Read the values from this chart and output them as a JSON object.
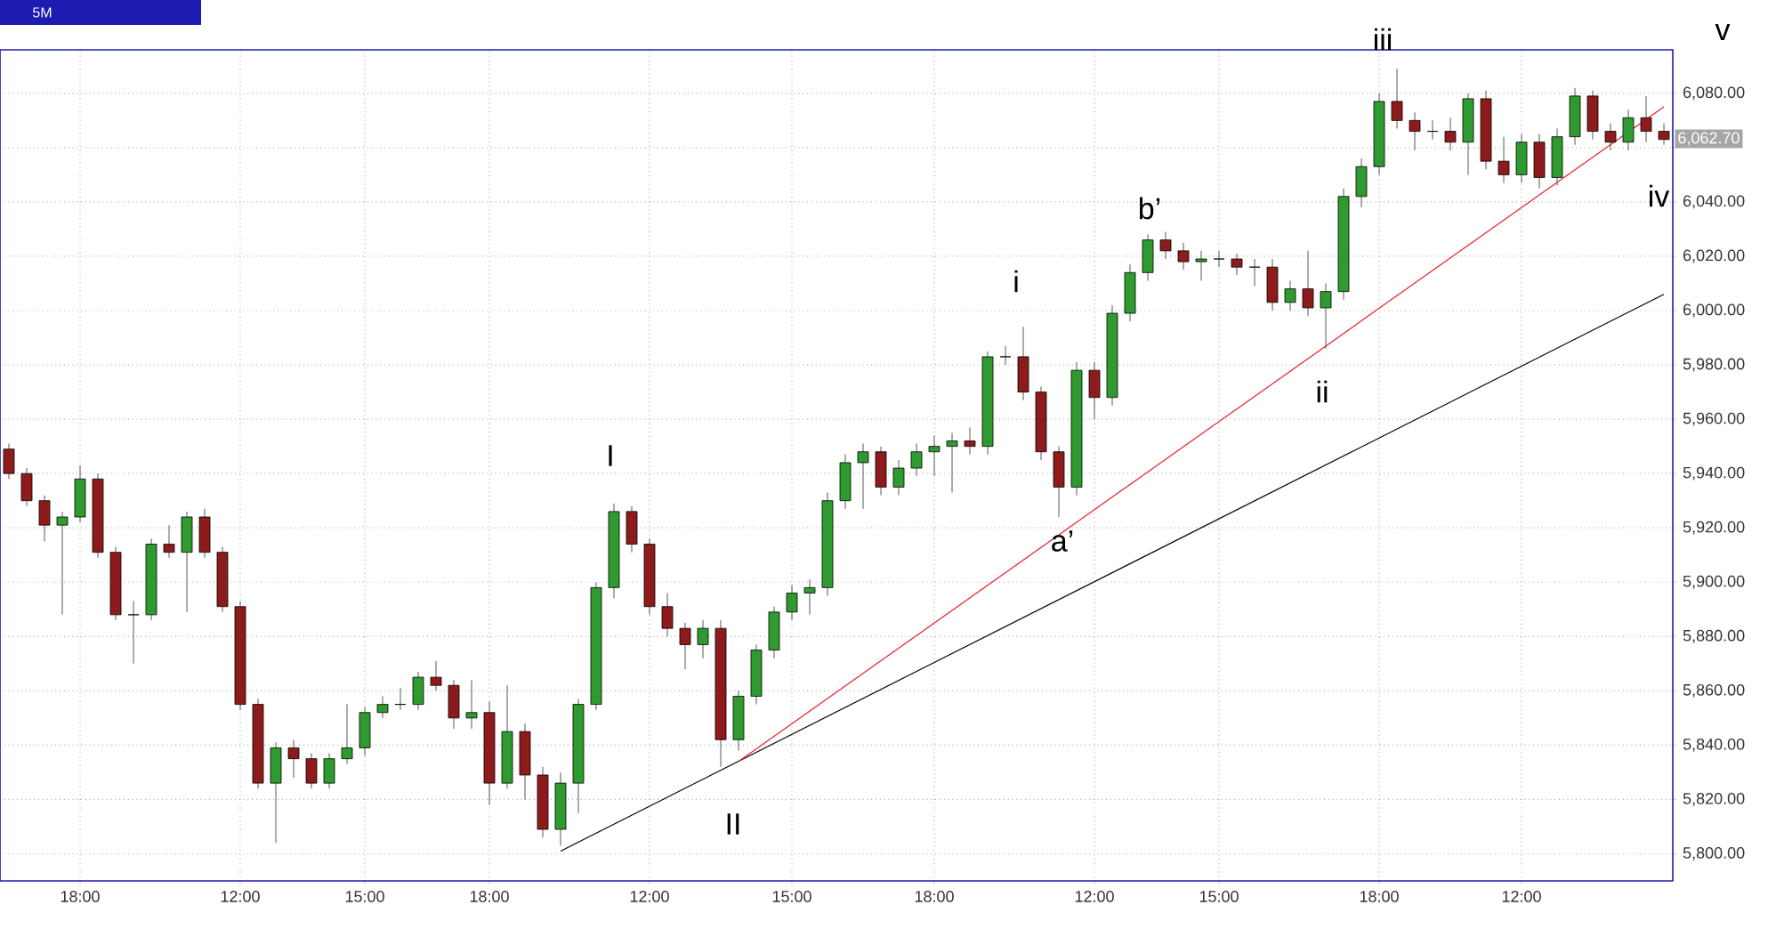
{
  "chart_data": {
    "type": "candlestick",
    "title": "5M",
    "categories": [
      null,
      null,
      null,
      null,
      "18:00",
      null,
      null,
      null,
      null,
      null,
      null,
      null,
      null,
      "12:00",
      null,
      null,
      null,
      null,
      null,
      null,
      "15:00",
      null,
      null,
      null,
      null,
      null,
      null,
      "18:00",
      null,
      null,
      null,
      null,
      null,
      null,
      null,
      null,
      "12:00",
      null,
      null,
      null,
      null,
      null,
      null,
      null,
      "15:00",
      null,
      null,
      null,
      null,
      null,
      null,
      null,
      "18:00",
      null,
      null,
      null,
      null,
      null,
      null,
      null,
      null,
      "12:00",
      null,
      null,
      null,
      null,
      null,
      null,
      "15:00",
      null,
      null,
      null,
      null,
      null,
      null,
      null,
      null,
      "18:00",
      null,
      null,
      null,
      null,
      null,
      null,
      null,
      "12:00",
      null,
      null,
      null,
      null,
      null,
      null,
      null,
      null
    ],
    "ohlc": [
      [
        5949,
        5951,
        5938,
        5940
      ],
      [
        5940,
        5942,
        5928,
        5930
      ],
      [
        5930,
        5932,
        5915,
        5921
      ],
      [
        5921,
        5926,
        5888,
        5924
      ],
      [
        5924,
        5943,
        5922,
        5938
      ],
      [
        5938,
        5940,
        5909,
        5911
      ],
      [
        5911,
        5913,
        5886,
        5888
      ],
      [
        5888,
        5893,
        5870,
        5888
      ],
      [
        5888,
        5916,
        5886,
        5914
      ],
      [
        5914,
        5921,
        5909,
        5911
      ],
      [
        5911,
        5926,
        5889,
        5924
      ],
      [
        5924,
        5927,
        5909,
        5911
      ],
      [
        5911,
        5913,
        5889,
        5891
      ],
      [
        5891,
        5893,
        5853,
        5855
      ],
      [
        5855,
        5857,
        5824,
        5826
      ],
      [
        5826,
        5841,
        5804,
        5839
      ],
      [
        5839,
        5842,
        5828,
        5835
      ],
      [
        5835,
        5837,
        5824,
        5826
      ],
      [
        5826,
        5837,
        5824,
        5835
      ],
      [
        5835,
        5855,
        5833,
        5839
      ],
      [
        5839,
        5854,
        5836,
        5852
      ],
      [
        5852,
        5858,
        5850,
        5855
      ],
      [
        5855,
        5861,
        5853,
        5855
      ],
      [
        5855,
        5867,
        5853,
        5865
      ],
      [
        5865,
        5871,
        5860,
        5862
      ],
      [
        5862,
        5864,
        5846,
        5850
      ],
      [
        5850,
        5864,
        5846,
        5852
      ],
      [
        5852,
        5856,
        5818,
        5826
      ],
      [
        5826,
        5862,
        5824,
        5845
      ],
      [
        5845,
        5848,
        5820,
        5829
      ],
      [
        5829,
        5832,
        5806,
        5809
      ],
      [
        5809,
        5830,
        5803,
        5826
      ],
      [
        5826,
        5857,
        5815,
        5855
      ],
      [
        5855,
        5900,
        5853,
        5898
      ],
      [
        5898,
        5929,
        5894,
        5926
      ],
      [
        5926,
        5928,
        5911,
        5914
      ],
      [
        5914,
        5916,
        5888,
        5891
      ],
      [
        5891,
        5896,
        5880,
        5883
      ],
      [
        5883,
        5885,
        5868,
        5877
      ],
      [
        5877,
        5886,
        5872,
        5883
      ],
      [
        5883,
        5886,
        5832,
        5842
      ],
      [
        5842,
        5860,
        5838,
        5858
      ],
      [
        5858,
        5877,
        5855,
        5875
      ],
      [
        5875,
        5891,
        5872,
        5889
      ],
      [
        5889,
        5899,
        5886,
        5896
      ],
      [
        5896,
        5901,
        5888,
        5898
      ],
      [
        5898,
        5933,
        5895,
        5930
      ],
      [
        5930,
        5947,
        5927,
        5944
      ],
      [
        5944,
        5951,
        5927,
        5948
      ],
      [
        5948,
        5950,
        5932,
        5935
      ],
      [
        5935,
        5945,
        5932,
        5942
      ],
      [
        5942,
        5951,
        5939,
        5948
      ],
      [
        5948,
        5954,
        5939,
        5950
      ],
      [
        5950,
        5955,
        5933,
        5952
      ],
      [
        5952,
        5957,
        5947,
        5950
      ],
      [
        5950,
        5985,
        5947,
        5983
      ],
      [
        5983,
        5987,
        5980,
        5983
      ],
      [
        5983,
        5994,
        5967,
        5970
      ],
      [
        5970,
        5972,
        5945,
        5948
      ],
      [
        5948,
        5950,
        5924,
        5935
      ],
      [
        5935,
        5981,
        5932,
        5978
      ],
      [
        5978,
        5981,
        5960,
        5968
      ],
      [
        5968,
        6002,
        5965,
        5999
      ],
      [
        5999,
        6017,
        5996,
        6014
      ],
      [
        6014,
        6028,
        6011,
        6026
      ],
      [
        6026,
        6029,
        6019,
        6022
      ],
      [
        6022,
        6025,
        6015,
        6018
      ],
      [
        6018,
        6022,
        6011,
        6019
      ],
      [
        6019,
        6022,
        6016,
        6019
      ],
      [
        6019,
        6021,
        6013,
        6016
      ],
      [
        6016,
        6019,
        6009,
        6016
      ],
      [
        6016,
        6019,
        6000,
        6003
      ],
      [
        6003,
        6011,
        6000,
        6008
      ],
      [
        6008,
        6022,
        5998,
        6001
      ],
      [
        6001,
        6010,
        5986,
        6007
      ],
      [
        6007,
        6045,
        6004,
        6042
      ],
      [
        6042,
        6056,
        6038,
        6053
      ],
      [
        6053,
        6080,
        6050,
        6077
      ],
      [
        6077,
        6089,
        6067,
        6070
      ],
      [
        6070,
        6073,
        6059,
        6066
      ],
      [
        6066,
        6070,
        6063,
        6066
      ],
      [
        6066,
        6071,
        6059,
        6062
      ],
      [
        6062,
        6080,
        6050,
        6078
      ],
      [
        6078,
        6081,
        6052,
        6055
      ],
      [
        6055,
        6064,
        6047,
        6050
      ],
      [
        6050,
        6065,
        6047,
        6062
      ],
      [
        6062,
        6065,
        6045,
        6049
      ],
      [
        6049,
        6067,
        6046,
        6064
      ],
      [
        6064,
        6082,
        6061,
        6079
      ],
      [
        6079,
        6081,
        6063,
        6066
      ],
      [
        6066,
        6069,
        6059,
        6062
      ],
      [
        6062,
        6074,
        6059,
        6071
      ],
      [
        6071,
        6079,
        6062,
        6066
      ],
      [
        6066,
        6069,
        6061,
        6063
      ]
    ],
    "series": [
      {
        "type": "line",
        "color": "#000000",
        "values": [
          null,
          null,
          null,
          null,
          null,
          null,
          null,
          null,
          null,
          null,
          null,
          null,
          null,
          null,
          null,
          null,
          null,
          null,
          null,
          null,
          null,
          null,
          null,
          null,
          null,
          null,
          null,
          null,
          null,
          null,
          null,
          5801,
          null,
          null,
          null,
          null,
          null,
          null,
          null,
          null,
          null,
          null,
          null,
          null,
          null,
          null,
          null,
          null,
          null,
          null,
          null,
          null,
          null,
          null,
          null,
          null,
          null,
          null,
          null,
          null,
          null,
          null,
          null,
          null,
          null,
          null,
          null,
          null,
          null,
          null,
          null,
          null,
          null,
          null,
          null,
          null,
          null,
          null,
          null,
          null,
          null,
          null,
          null,
          null,
          null,
          null,
          null,
          null,
          null,
          null,
          null,
          null,
          null,
          6006
        ]
      },
      {
        "type": "line",
        "color": "#e8202a",
        "values": [
          null,
          null,
          null,
          null,
          null,
          null,
          null,
          null,
          null,
          null,
          null,
          null,
          null,
          null,
          null,
          null,
          null,
          null,
          null,
          null,
          null,
          null,
          null,
          null,
          null,
          null,
          null,
          null,
          null,
          null,
          null,
          null,
          null,
          null,
          null,
          null,
          null,
          null,
          null,
          null,
          null,
          5834,
          null,
          null,
          null,
          null,
          null,
          null,
          null,
          null,
          null,
          null,
          null,
          null,
          null,
          null,
          null,
          null,
          null,
          null,
          null,
          null,
          null,
          null,
          null,
          null,
          null,
          null,
          null,
          null,
          null,
          null,
          null,
          null,
          null,
          null,
          null,
          null,
          null,
          null,
          null,
          null,
          null,
          null,
          null,
          null,
          null,
          null,
          null,
          null,
          null,
          null,
          null,
          6075
        ]
      }
    ],
    "ylim": [
      5790,
      6096
    ],
    "yticks": [
      {
        "value": 5800,
        "label": "5,800.00"
      },
      {
        "value": 5820,
        "label": "5,820.00"
      },
      {
        "value": 5840,
        "label": "5,840.00"
      },
      {
        "value": 5860,
        "label": "5,860.00"
      },
      {
        "value": 5880,
        "label": "5,880.00"
      },
      {
        "value": 5900,
        "label": "5,900.00"
      },
      {
        "value": 5920,
        "label": "5,920.00"
      },
      {
        "value": 5940,
        "label": "5,940.00"
      },
      {
        "value": 5960,
        "label": "5,960.00"
      },
      {
        "value": 5980,
        "label": "5,980.00"
      },
      {
        "value": 6000,
        "label": "6,000.00"
      },
      {
        "value": 6020,
        "label": "6,020.00"
      },
      {
        "value": 6040,
        "label": "6,040.00"
      },
      {
        "value": 6060,
        "label": null
      },
      {
        "value": 6080,
        "label": "6,080.00"
      }
    ],
    "grid": true,
    "annotations": [
      "I",
      "II",
      "i",
      "a’",
      "b’",
      "ii",
      "iii",
      "iv",
      "6,062.70",
      "v"
    ]
  }
}
